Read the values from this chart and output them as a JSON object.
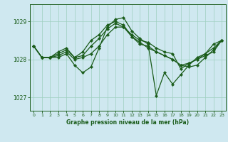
{
  "xlabel": "Graphe pression niveau de la mer (hPa)",
  "background_color": "#cfe8f0",
  "plot_bg_color": "#cfe8f0",
  "line_color": "#1a5c1a",
  "grid_color": "#9ecfbf",
  "ylim": [
    1026.65,
    1029.45
  ],
  "xlim": [
    -0.5,
    23.5
  ],
  "yticks": [
    1027,
    1028,
    1029
  ],
  "xticks": [
    0,
    1,
    2,
    3,
    4,
    5,
    6,
    7,
    8,
    9,
    10,
    11,
    12,
    13,
    14,
    15,
    16,
    17,
    18,
    19,
    20,
    21,
    22,
    23
  ],
  "series": [
    [
      1028.35,
      1028.05,
      1028.05,
      1028.05,
      1028.15,
      1027.85,
      1027.65,
      1027.8,
      1028.3,
      1028.85,
      1029.05,
      1029.1,
      1028.75,
      1028.55,
      1028.4,
      1027.05,
      1027.65,
      1027.35,
      1027.6,
      1027.85,
      1028.05,
      1028.15,
      1028.4,
      1028.5
    ],
    [
      1028.35,
      1028.05,
      1028.05,
      1028.1,
      1028.2,
      1028.0,
      1028.05,
      1028.15,
      1028.35,
      1028.65,
      1028.85,
      1028.85,
      1028.6,
      1028.45,
      1028.3,
      1028.2,
      1028.1,
      1028.0,
      1027.85,
      1027.8,
      1027.85,
      1028.05,
      1028.25,
      1028.5
    ],
    [
      1028.35,
      1028.05,
      1028.05,
      1028.15,
      1028.25,
      1028.05,
      1028.1,
      1028.35,
      1028.55,
      1028.8,
      1028.95,
      1028.85,
      1028.65,
      1028.5,
      1028.45,
      1028.3,
      1028.2,
      1028.15,
      1027.75,
      1027.9,
      1028.0,
      1028.15,
      1028.3,
      1028.5
    ],
    [
      1028.35,
      1028.05,
      1028.05,
      1028.2,
      1028.3,
      1028.05,
      1028.2,
      1028.5,
      1028.65,
      1028.9,
      1029.0,
      1028.9,
      1028.6,
      1028.4,
      1028.35,
      1028.2,
      1028.1,
      1028.0,
      1027.85,
      1027.9,
      1028.0,
      1028.1,
      1028.2,
      1028.5
    ]
  ],
  "marker": "D",
  "markersize": 2.2,
  "linewidth": 0.9
}
